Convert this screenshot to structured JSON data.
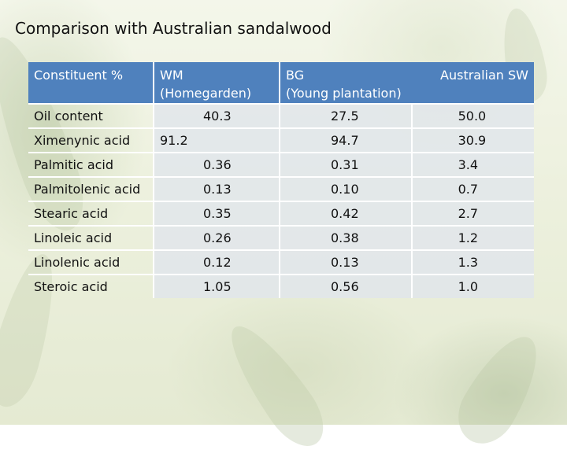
{
  "slide": {
    "title": "Comparison with Australian sandalwood"
  },
  "table": {
    "headers": {
      "constituent": "Constituent %",
      "wm_line1": "WM",
      "wm_line2": "(Homegarden)",
      "bg_line1": "BG",
      "bg_line2": "(Young plantation)",
      "australian": "Australian SW"
    },
    "rows": [
      {
        "name": "Oil content",
        "wm": "40.3",
        "bg": "27.5",
        "aus": "50.0"
      },
      {
        "name": "Ximenynic acid",
        "wm": "91.2",
        "bg": "94.7",
        "aus": "30.9"
      },
      {
        "name": "Palmitic acid",
        "wm": "0.36",
        "bg": "0.31",
        "aus": "3.4"
      },
      {
        "name": "Palmitolenic acid",
        "wm": "0.13",
        "bg": "0.10",
        "aus": "0.7"
      },
      {
        "name": "Stearic acid",
        "wm": "0.35",
        "bg": "0.42",
        "aus": "2.7"
      },
      {
        "name": "Linoleic acid",
        "wm": "0.26",
        "bg": "0.38",
        "aus": "1.2"
      },
      {
        "name": "Linolenic acid",
        "wm": "0.12",
        "bg": "0.13",
        "aus": "1.3"
      },
      {
        "name": "Steroic acid",
        "wm": "1.05",
        "bg": "0.56",
        "aus": "1.0"
      }
    ]
  },
  "colors": {
    "header_bg": "#4f81bd",
    "cell_bg": "#e1e5ec"
  }
}
